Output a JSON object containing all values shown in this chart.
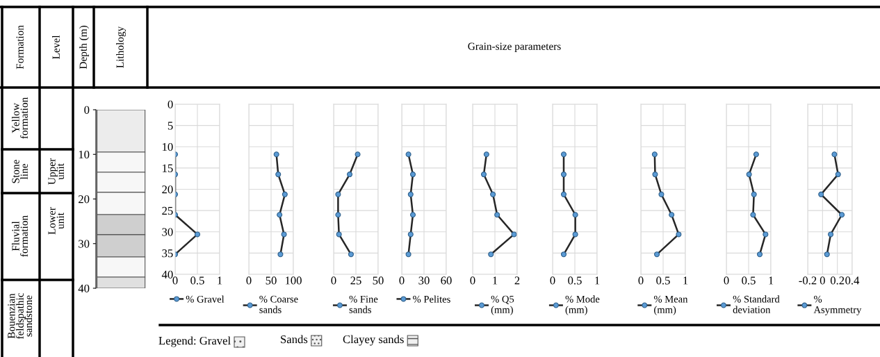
{
  "chart_data": [
    {
      "type": "bar",
      "stacked": true,
      "categories": [
        null
      ],
      "annotations": [
        "Formation",
        "Level",
        "Depth (m)",
        "Lithology",
        "Grain-size parameters",
        "Yellow\nformation",
        "Stone\nline",
        "Upper\nunit",
        "Fluvial\nformation",
        "Lower\nunit",
        "Bouenzian\nfeldspathic\nsandstone",
        "Legend: Gravel",
        "Sands",
        "Clayey sands"
      ],
      "ylim": [
        40,
        0
      ],
      "yticks": [
        0,
        10,
        20,
        30,
        40
      ],
      "tick_labels": "y",
      "series": [
        {
          "color": "#ececec",
          "values": [
            9.5
          ]
        },
        {
          "color": "#f7f7f7",
          "values": [
            4.5
          ]
        },
        {
          "color": "#f7f7f7",
          "values": [
            4.5
          ]
        },
        {
          "color": "#f7f7f7",
          "values": [
            5
          ]
        },
        {
          "color": "#cfcfcf",
          "values": [
            4.5
          ]
        },
        {
          "color": "#cfcfcf",
          "values": [
            5
          ]
        },
        {
          "color": "#f7f7f7",
          "values": [
            4.5
          ]
        },
        {
          "color": "#e0e0e0",
          "values": [
            2.5
          ]
        }
      ]
    },
    {
      "type": "line",
      "orientation": "horizontal",
      "x": [
        11.8,
        16.5,
        21.2,
        26,
        30.6,
        35.3
      ],
      "series": [
        {
          "name": "% Gravel",
          "color": "#5b9bd5",
          "values": [
            0,
            0,
            0,
            0,
            0.5,
            0
          ]
        }
      ],
      "xlim": [
        0,
        1
      ],
      "xticks": [
        0,
        0.5,
        1
      ],
      "ylim": [
        40,
        0
      ],
      "yticks": [
        0,
        5,
        10,
        15,
        20,
        25,
        30,
        35,
        40
      ],
      "grid": true,
      "legend": "bottom",
      "marker": "circle",
      "line_style": "solid"
    },
    {
      "type": "line",
      "orientation": "horizontal",
      "x": [
        11.8,
        16.5,
        21.2,
        26,
        30.6,
        35.3
      ],
      "series": [
        {
          "name": "% Coarse\nsands",
          "color": "#5b9bd5",
          "values": [
            62,
            66,
            81,
            69,
            79,
            71
          ]
        }
      ],
      "xlim": [
        0,
        100
      ],
      "xticks": [
        0,
        50,
        100
      ],
      "ylim": [
        40,
        0
      ],
      "yticks": [
        0,
        5,
        10,
        15,
        20,
        25,
        30,
        35,
        40
      ],
      "tick_labels": "x",
      "grid": true,
      "legend": "bottom",
      "marker": "circle",
      "line_style": "solid"
    },
    {
      "type": "line",
      "orientation": "horizontal",
      "x": [
        11.8,
        16.5,
        21.2,
        26,
        30.6,
        35.3
      ],
      "series": [
        {
          "name": "% Fine\nsands",
          "color": "#5b9bd5",
          "values": [
            27,
            18,
            5,
            5,
            6,
            19.5
          ]
        }
      ],
      "xlim": [
        0,
        50
      ],
      "xticks": [
        0,
        25,
        50
      ],
      "ylim": [
        40,
        0
      ],
      "yticks": [
        0,
        5,
        10,
        15,
        20,
        25,
        30,
        35,
        40
      ],
      "tick_labels": "x",
      "grid": true,
      "legend": "bottom",
      "marker": "circle",
      "line_style": "solid"
    },
    {
      "type": "line",
      "orientation": "horizontal",
      "x": [
        11.8,
        16.5,
        21.2,
        26,
        30.6,
        35.3
      ],
      "series": [
        {
          "name": "% Pelites",
          "color": "#5b9bd5",
          "values": [
            9,
            15,
            12,
            15,
            12,
            9
          ]
        }
      ],
      "xlim": [
        0,
        60
      ],
      "xticks": [
        0,
        30,
        60
      ],
      "ylim": [
        40,
        0
      ],
      "yticks": [
        0,
        5,
        10,
        15,
        20,
        25,
        30,
        35,
        40
      ],
      "tick_labels": "x",
      "grid": true,
      "legend": "bottom",
      "marker": "circle",
      "line_style": "solid"
    },
    {
      "type": "line",
      "orientation": "horizontal",
      "x": [
        11.8,
        16.5,
        21.2,
        26,
        30.6,
        35.3
      ],
      "series": [
        {
          "name": "% Q5\n(mm)",
          "color": "#5b9bd5",
          "values": [
            0.62,
            0.5,
            0.91,
            1.1,
            1.86,
            0.82
          ]
        }
      ],
      "xlim": [
        0,
        2
      ],
      "xticks": [
        0,
        1,
        2
      ],
      "ylim": [
        40,
        0
      ],
      "yticks": [
        0,
        5,
        10,
        15,
        20,
        25,
        30,
        35,
        40
      ],
      "tick_labels": "x",
      "grid": true,
      "legend": "bottom",
      "marker": "circle",
      "line_style": "solid"
    },
    {
      "type": "line",
      "orientation": "horizontal",
      "x": [
        11.8,
        16.5,
        21.2,
        26,
        30.6,
        35.3
      ],
      "series": [
        {
          "name": "% Mode\n(mm)",
          "color": "#5b9bd5",
          "values": [
            0.25,
            0.25,
            0.25,
            0.51,
            0.51,
            0.25
          ]
        }
      ],
      "xlim": [
        0,
        1
      ],
      "xticks": [
        0,
        0.5,
        1
      ],
      "ylim": [
        40,
        0
      ],
      "yticks": [
        0,
        5,
        10,
        15,
        20,
        25,
        30,
        35,
        40
      ],
      "tick_labels": "x",
      "grid": true,
      "legend": "bottom",
      "marker": "circle",
      "line_style": "solid"
    },
    {
      "type": "line",
      "orientation": "horizontal",
      "x": [
        11.8,
        16.5,
        21.2,
        26,
        30.6,
        35.3
      ],
      "series": [
        {
          "name": "% Mean\n(mm)",
          "color": "#5b9bd5",
          "values": [
            0.31,
            0.32,
            0.46,
            0.69,
            0.85,
            0.36
          ]
        }
      ],
      "xlim": [
        0,
        1
      ],
      "xticks": [
        0,
        0.5,
        1
      ],
      "ylim": [
        40,
        0
      ],
      "yticks": [
        0,
        5,
        10,
        15,
        20,
        25,
        30,
        35,
        40
      ],
      "tick_labels": "x",
      "grid": true,
      "legend": "bottom",
      "marker": "circle",
      "line_style": "solid"
    },
    {
      "type": "line",
      "orientation": "horizontal",
      "x": [
        11.8,
        16.5,
        21.2,
        26,
        30.6,
        35.3
      ],
      "series": [
        {
          "name": "% Standard\ndeviation",
          "color": "#5b9bd5",
          "values": [
            0.67,
            0.51,
            0.62,
            0.6,
            0.88,
            0.75
          ]
        }
      ],
      "xlim": [
        0,
        1
      ],
      "xticks": [
        0,
        0.5,
        1
      ],
      "ylim": [
        40,
        0
      ],
      "yticks": [
        0,
        5,
        10,
        15,
        20,
        25,
        30,
        35,
        40
      ],
      "tick_labels": "x",
      "grid": true,
      "legend": "bottom",
      "marker": "circle",
      "line_style": "solid"
    },
    {
      "type": "line",
      "orientation": "horizontal",
      "x": [
        11.8,
        16.5,
        21.2,
        26,
        30.6,
        35.3
      ],
      "series": [
        {
          "name": "%\nAsymmetry",
          "color": "#5b9bd5",
          "values": [
            0.16,
            0.21,
            -0.02,
            0.26,
            0.11,
            0.06
          ]
        }
      ],
      "xlim": [
        -0.2,
        0.4
      ],
      "xticks": [
        -0.2,
        0,
        0.2,
        0.4
      ],
      "ylim": [
        40,
        0
      ],
      "yticks": [
        0,
        5,
        10,
        15,
        20,
        25,
        30,
        35,
        40
      ],
      "tick_labels": "x",
      "grid": true,
      "legend": "bottom",
      "marker": "circle",
      "line_style": "solid"
    }
  ]
}
